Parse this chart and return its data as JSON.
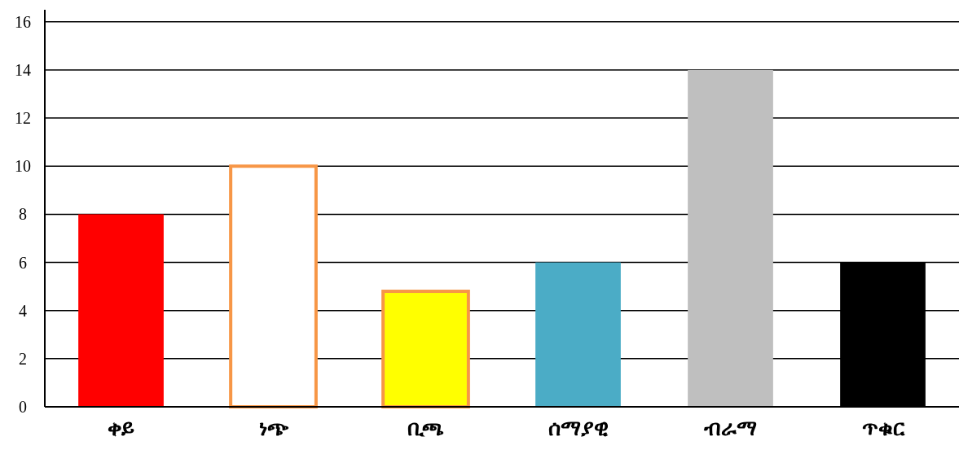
{
  "chart_data": {
    "type": "bar",
    "categories": [
      "ቀይ",
      "ነጭ",
      "ቢጫ",
      "ሰማያዊ",
      "ብራማ",
      "ጥቁር"
    ],
    "values": [
      8,
      10,
      4.8,
      6,
      14,
      6
    ],
    "colors": [
      "#ff0000",
      "#ffffff",
      "#ffff00",
      "#4bacc6",
      "#bfbfbf",
      "#000000"
    ],
    "ylim": [
      0,
      16.5
    ],
    "yticks": [
      0,
      2,
      4,
      6,
      8,
      10,
      12,
      14,
      16
    ],
    "grid": "y"
  }
}
